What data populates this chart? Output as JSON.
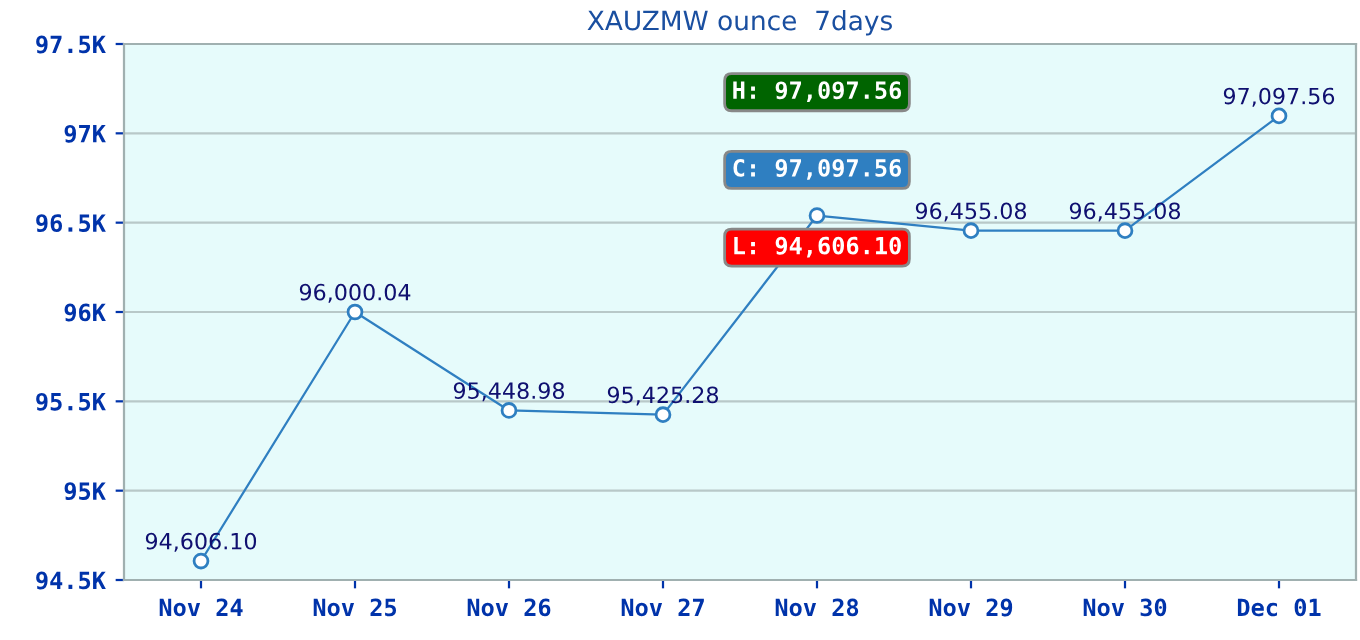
{
  "chart_data": {
    "type": "line",
    "title": "XAUZMW ounce  7days",
    "categories": [
      "Nov 24",
      "Nov 25",
      "Nov 26",
      "Nov 27",
      "Nov 28",
      "Nov 29",
      "Nov 30",
      "Dec 01"
    ],
    "series": [
      {
        "color": "#2f7fc1",
        "values": [
          94606.1,
          96000.04,
          95448.98,
          95425.28,
          96540,
          96455.08,
          96455.08,
          97097.56
        ],
        "value_labels": [
          "94,606.10",
          "96,000.04",
          "95,448.98",
          "95,425.28",
          null,
          "96,455.08",
          "96,455.08",
          "97,097.56"
        ]
      }
    ],
    "ylim": [
      94500,
      97500
    ],
    "yticks": [
      {
        "value": 94500,
        "label": "94.5K"
      },
      {
        "value": 95000,
        "label": "95K"
      },
      {
        "value": 95500,
        "label": "95.5K"
      },
      {
        "value": 96000,
        "label": "96K"
      },
      {
        "value": 96500,
        "label": "96.5K"
      },
      {
        "value": 97000,
        "label": "97K"
      },
      {
        "value": 97500,
        "label": "97.5K"
      }
    ],
    "grid": "y",
    "marker": "circle",
    "line_style": "solid",
    "legend": false,
    "annotations": [
      "H: 97,097.56",
      "C: 97,097.56",
      "L: 94,606.10"
    ]
  }
}
